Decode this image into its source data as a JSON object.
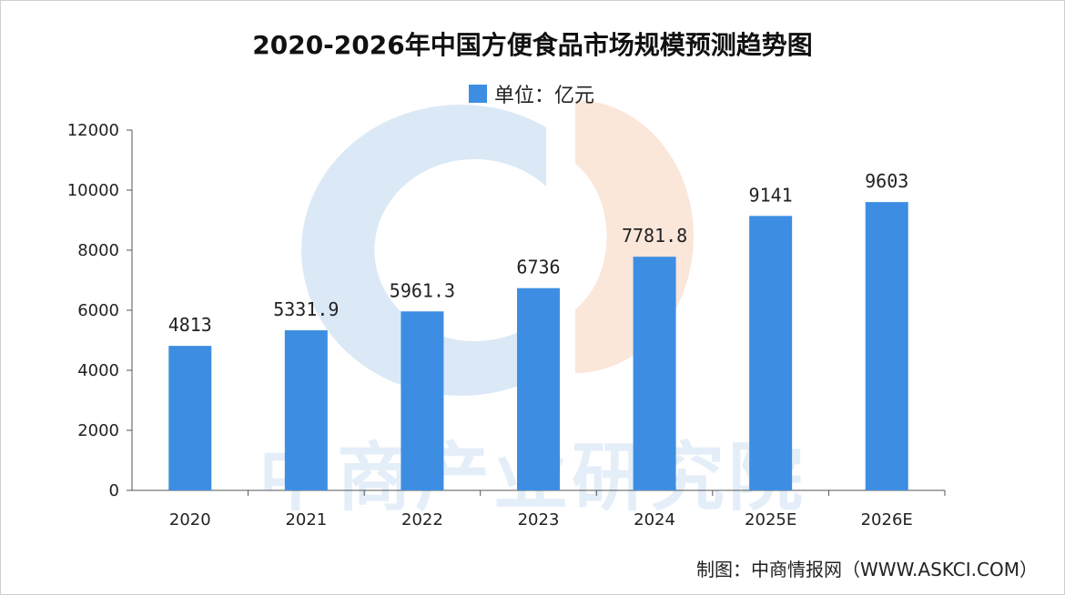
{
  "chart_data": {
    "type": "bar",
    "title": "2020-2026年中国方便食品市场规模预测趋势图",
    "legend": {
      "label": "单位：亿元",
      "position": "top-center"
    },
    "categories": [
      "2020",
      "2021",
      "2022",
      "2023",
      "2024",
      "2025E",
      "2026E"
    ],
    "values": [
      4813,
      5331.9,
      5961.3,
      6736,
      7781.8,
      9141,
      9603
    ],
    "value_labels": [
      "4813",
      "5331.9",
      "5961.3",
      "6736",
      "7781.8",
      "9141",
      "9603"
    ],
    "ylim": [
      0,
      12000
    ],
    "yticks": [
      "0",
      "2000",
      "4000",
      "6000",
      "8000",
      "10000",
      "12000"
    ],
    "xlabel": "",
    "ylabel": "",
    "grid": false,
    "colors": {
      "bar": "#3d8ee2"
    }
  },
  "watermark": {
    "text": "中商产业研究院"
  },
  "source": "制图：中商情报网（WWW.ASKCI.COM）"
}
